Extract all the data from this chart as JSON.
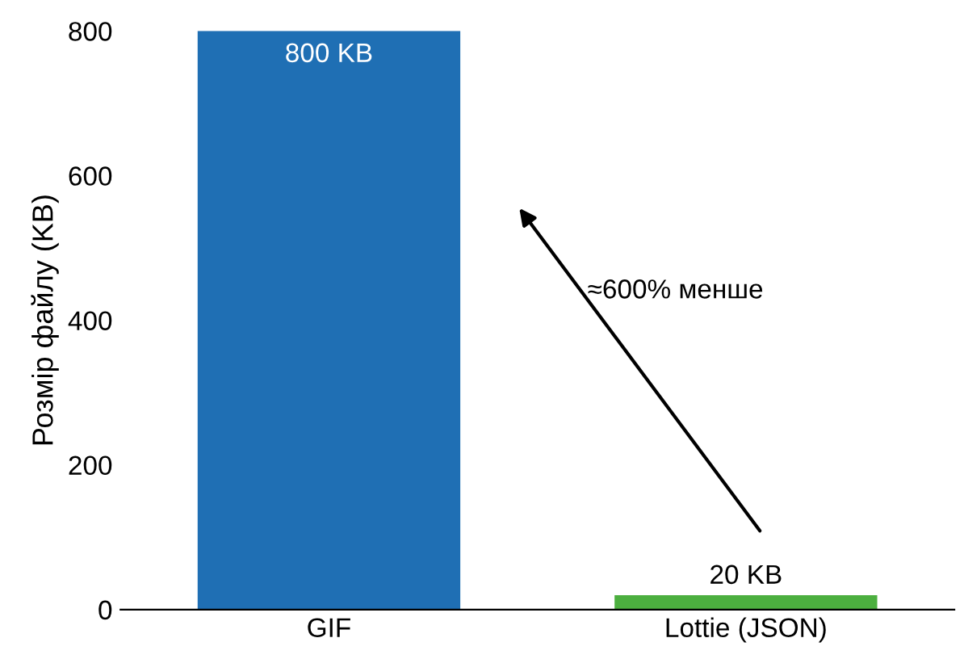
{
  "chart_data": {
    "type": "bar",
    "ylabel": "Розмір файлу (KB)",
    "categories": [
      "GIF",
      "Lottie (JSON)"
    ],
    "values": [
      800,
      20
    ],
    "colors": [
      "#1f6fb4",
      "#4caf3f"
    ],
    "value_labels": [
      "800 KB",
      "20 KB"
    ],
    "ylim": [
      0,
      800
    ],
    "yticks": [
      0,
      200,
      400,
      600,
      800
    ],
    "grid": false,
    "annotations": [
      "≈600% менше"
    ]
  }
}
